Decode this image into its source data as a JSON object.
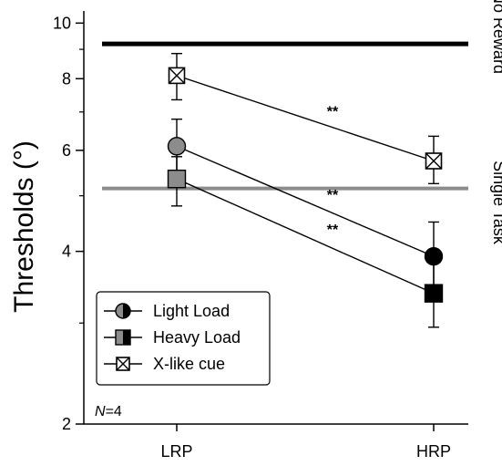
{
  "chart_data": {
    "type": "line",
    "yscale": "log",
    "ylim": [
      2,
      10.5
    ],
    "ylabel": "Thresholds (°)",
    "xlabel": "",
    "categories": [
      "LRP",
      "HRP"
    ],
    "y_ticks": [
      "2",
      "4",
      "6",
      "8",
      "10"
    ],
    "y_tick_values": [
      2,
      4,
      6,
      8,
      10
    ],
    "reference_lines": [
      {
        "name": "No Reward",
        "value": 9.2,
        "color": "#000000"
      },
      {
        "name": "Single Task",
        "value": 5.15,
        "color": "#8c8c8c"
      }
    ],
    "series": [
      {
        "name": "X-like cue",
        "marker": "x-square",
        "values": [
          8.1,
          5.75
        ],
        "err_low": [
          7.35,
          5.25
        ],
        "err_high": [
          8.85,
          6.35
        ]
      },
      {
        "name": "Light Load",
        "marker": "circle",
        "values": [
          6.1,
          3.92
        ],
        "err_low": [
          5.45,
          3.42
        ],
        "err_high": [
          6.8,
          4.5
        ]
      },
      {
        "name": "Heavy Load",
        "marker": "square",
        "values": [
          5.35,
          3.38
        ],
        "err_low": [
          4.8,
          2.95
        ],
        "err_high": [
          5.85,
          3.92
        ]
      }
    ],
    "significance": [
      "**",
      "**",
      "**"
    ],
    "legend": {
      "position": "bottom-left",
      "entries": [
        "Light Load",
        "Heavy Load",
        "X-like cue"
      ]
    },
    "annotation": {
      "italic": "N",
      "rest": "=4"
    },
    "colors": {
      "gray_fill": "#8c8c8c",
      "black": "#000000",
      "white": "#ffffff"
    }
  }
}
